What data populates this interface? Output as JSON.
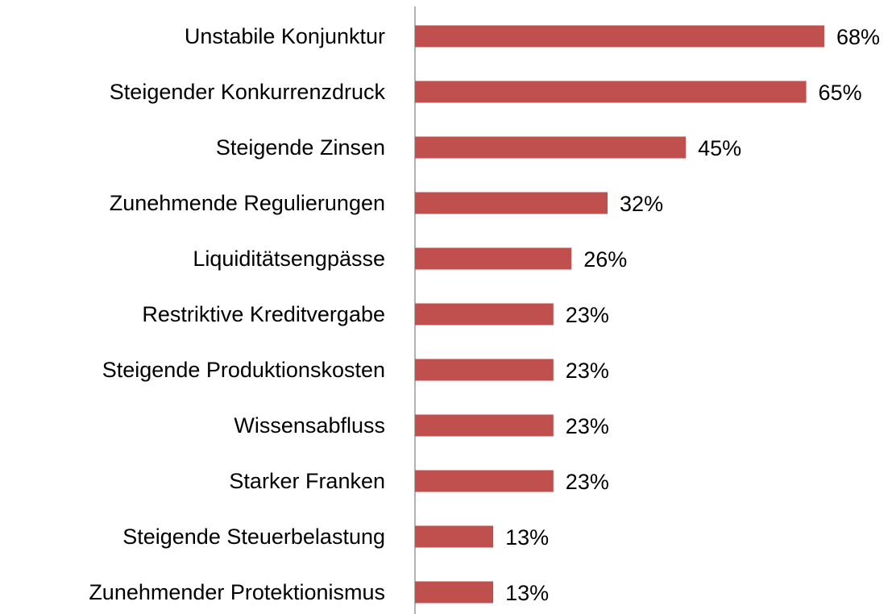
{
  "chart_data": {
    "type": "bar",
    "orientation": "horizontal",
    "color": "#c0504d",
    "categories": [
      "Unstabile Konjunktur",
      "Steigender Konkurrenzdruck",
      "Steigende Zinsen",
      "Zunehmende Regulierungen",
      "Liquiditätsengpässe",
      "Restriktive Kreditvergabe",
      "Steigende Produktionskosten",
      "Wissensabfluss",
      "Starker Franken",
      "Steigende Steuerbelastung",
      "Zunehmender Protektionismus"
    ],
    "values": [
      68,
      65,
      45,
      32,
      26,
      23,
      23,
      23,
      23,
      13,
      13
    ],
    "value_labels": [
      "68%",
      "65%",
      "45%",
      "32%",
      "26%",
      "23%",
      "23%",
      "23%",
      "23%",
      "13%",
      "13%"
    ]
  }
}
